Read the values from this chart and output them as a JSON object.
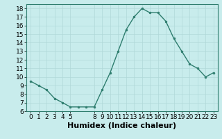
{
  "x": [
    0,
    1,
    2,
    3,
    4,
    5,
    6,
    7,
    8,
    9,
    10,
    11,
    12,
    13,
    14,
    15,
    16,
    17,
    18,
    19,
    20,
    21,
    22,
    23
  ],
  "y": [
    9.5,
    9.0,
    8.5,
    7.5,
    7.0,
    6.5,
    6.5,
    6.5,
    6.5,
    8.5,
    10.5,
    13.0,
    15.5,
    17.0,
    18.0,
    17.5,
    17.5,
    16.5,
    14.5,
    13.0,
    11.5,
    11.0,
    10.0,
    10.5
  ],
  "xlabel": "Humidex (Indice chaleur)",
  "ylim": [
    6,
    18.5
  ],
  "yticks": [
    6,
    7,
    8,
    9,
    10,
    11,
    12,
    13,
    14,
    15,
    16,
    17,
    18
  ],
  "xticks": [
    0,
    1,
    2,
    3,
    4,
    5,
    8,
    9,
    10,
    11,
    12,
    13,
    14,
    15,
    16,
    17,
    18,
    19,
    20,
    21,
    22,
    23
  ],
  "xlim": [
    -0.5,
    23.5
  ],
  "line_color": "#2e7d6e",
  "marker_color": "#2e7d6e",
  "bg_color": "#c8ecec",
  "grid_color": "#b0d8d8",
  "tick_label_fontsize": 6.5,
  "xlabel_fontsize": 8
}
